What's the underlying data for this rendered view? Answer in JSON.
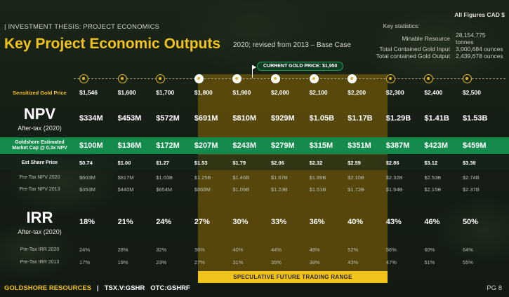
{
  "header": {
    "kicker": "| INVESTMENT THESIS:  PROJECT ECONOMICS",
    "title": "Key Project Economic Outputs",
    "subtitle": "2020; revised from 2013 – Base Case",
    "figures_note": "All Figures CAD $"
  },
  "key_stats": {
    "heading": "Key statistics:",
    "items": [
      {
        "label": "Minable Resource",
        "value": "28,154,775 tonnes"
      },
      {
        "label": "Total Contained Gold Input",
        "value": "3,000,684 ounces"
      },
      {
        "label": "Total contained Gold Output",
        "value": "2,439,678 ounces"
      }
    ]
  },
  "current_price_tag": "CURRENT GOLD PRICE: $1,950",
  "speculative_label": "SPECULATIVE FUTURE TRADING RANGE",
  "rows": {
    "gold": {
      "label": "Sensitized Gold Price",
      "values": [
        "$1,546",
        "$1,600",
        "$1,700",
        "$1,800",
        "$1,900",
        "$2,000",
        "$2,100",
        "$2,200",
        "$2,300",
        "$2,400",
        "$2,500"
      ]
    },
    "npv": {
      "label": "NPV",
      "sublabel": "After-tax (2020)",
      "values": [
        "$334M",
        "$453M",
        "$572M",
        "$691M",
        "$810M",
        "$929M",
        "$1.05B",
        "$1.17B",
        "$1.29B",
        "$1.41B",
        "$1.53B"
      ]
    },
    "mcap": {
      "label_line1": "Goldshore Estimated",
      "label_line2": "Market Cap @ 0.3x NPV",
      "values": [
        "$100M",
        "$136M",
        "$172M",
        "$207M",
        "$243M",
        "$279M",
        "$315M",
        "$351M",
        "$387M",
        "$423M",
        "$459M"
      ]
    },
    "share": {
      "label": "Est Share Price",
      "values": [
        "$0.74",
        "$1.00",
        "$1.27",
        "$1.53",
        "$1.79",
        "$2.06",
        "$2.32",
        "$2.59",
        "$2.86",
        "$3.12",
        "$3.39"
      ]
    },
    "pretax_npv_2020": {
      "label": "Pre-Tax NPV 2020",
      "values": [
        "$603M",
        "$817M",
        "$1.03B",
        "$1.25B",
        "$1.46B",
        "$1.67B",
        "$1.89B",
        "$2.10B",
        "$2.32B",
        "$2.53B",
        "$2.74B"
      ]
    },
    "pretax_npv_2013": {
      "label": "Pre-Tax NPV 2013",
      "values": [
        "$353M",
        "$440M",
        "$654M",
        "$868M",
        "$1.09B",
        "$1.23B",
        "$1.51B",
        "$1.72B",
        "$1.94B",
        "$2.15B",
        "$2.37B"
      ]
    },
    "irr": {
      "label": "IRR",
      "sublabel": "After-tax (2020)",
      "values": [
        "18%",
        "21%",
        "24%",
        "27%",
        "30%",
        "33%",
        "36%",
        "40%",
        "43%",
        "46%",
        "50%"
      ]
    },
    "pretax_irr_2020": {
      "label": "Pre-Tax IRR 2020",
      "values": [
        "24%",
        "28%",
        "32%",
        "36%",
        "40%",
        "44%",
        "48%",
        "52%",
        "56%",
        "60%",
        "64%"
      ]
    },
    "pretax_irr_2013": {
      "label": "Pre-Tax IRR 2013",
      "values": [
        "17%",
        "19%",
        "23%",
        "27%",
        "31%",
        "35%",
        "39%",
        "43%",
        "47%",
        "51%",
        "55%"
      ]
    }
  },
  "footer": {
    "company": "GOLDSHORE RESOURCES",
    "sep": "|",
    "tsx": "TSX.V:GSHR",
    "otc": "OTC:GSHRF",
    "page": "PG 8"
  },
  "colors": {
    "accent_gold": "#f2c31b",
    "band": "#8c6a05",
    "green_row": "#148b4c"
  }
}
